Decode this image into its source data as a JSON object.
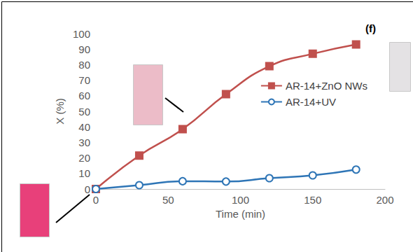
{
  "chart_data": {
    "type": "line",
    "title": "(f)",
    "y_label": "X (%)",
    "x": [
      0,
      30,
      60,
      90,
      120,
      150,
      180
    ],
    "series": [
      {
        "name": "AR-14+ZnO NWs",
        "color": "#c0504d",
        "marker": "square",
        "values": [
          0,
          21.5,
          38.5,
          61,
          79,
          87,
          93
        ]
      },
      {
        "name": "AR-14+UV",
        "color": "#2e75b6",
        "marker": "circle_open",
        "values": [
          0,
          2.5,
          5,
          4.8,
          7,
          8.8,
          12.5
        ]
      }
    ],
    "x_label": "Time (min)",
    "xlim": [
      0,
      200
    ],
    "xticks": [
      0,
      50,
      100,
      150,
      200
    ],
    "ylim": [
      0,
      100
    ],
    "yticks": [
      0,
      10,
      20,
      30,
      40,
      50,
      60,
      70,
      80,
      90,
      100
    ],
    "grid": false,
    "legend": "right"
  }
}
